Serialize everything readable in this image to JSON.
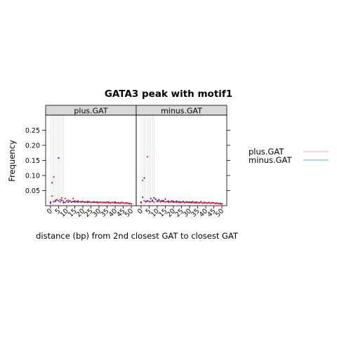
{
  "chart_data": {
    "type": "scatter",
    "title": "GATA3 peak with motif1",
    "xlabel": "distance (bp) from 2nd closest GAT to closest GAT",
    "ylabel": "Frequency",
    "xlim": [
      -3,
      53
    ],
    "ylim": [
      0,
      0.3
    ],
    "xticks": [
      0,
      5,
      10,
      15,
      20,
      25,
      30,
      35,
      40,
      45,
      50
    ],
    "yticks": [
      0.05,
      0.1,
      0.15,
      0.2,
      0.25
    ],
    "ytick_labels": [
      "0.05",
      "0.10",
      "0.15",
      "0.20",
      "0.25"
    ],
    "grid": "vertical lines at x = 0..8",
    "legend_placement": "right",
    "legend": [
      {
        "name": "plus.GAT",
        "color": "#ffc0cb"
      },
      {
        "name": "minus.GAT",
        "color": "#87ceeb"
      }
    ],
    "panels": [
      {
        "name": "plus.GAT",
        "series": [
          {
            "color": "#0000ff",
            "x": [
              0,
              1,
              2,
              3,
              4,
              5,
              6,
              7,
              8,
              9,
              10,
              11,
              12,
              13,
              14,
              15,
              16,
              17,
              18,
              19,
              20,
              21,
              22,
              23,
              24,
              25,
              26,
              27,
              28,
              29,
              30,
              31,
              32,
              33,
              34,
              35,
              36,
              37,
              38,
              39,
              40,
              41,
              42,
              43,
              44,
              45,
              46,
              47,
              48,
              49,
              50
            ],
            "y": [
              0.012,
              0.076,
              0.013,
              0.015,
              0.019,
              0.158,
              0.013,
              0.018,
              0.01,
              0.011,
              0.015,
              0.012,
              0.016,
              0.012,
              0.014,
              0.012,
              0.013,
              0.012,
              0.013,
              0.012,
              0.014,
              0.011,
              0.012,
              0.011,
              0.013,
              0.011,
              0.012,
              0.011,
              0.012,
              0.01,
              0.011,
              0.012,
              0.01,
              0.011,
              0.01,
              0.012,
              0.01,
              0.009,
              0.011,
              0.01,
              0.012,
              0.009,
              0.01,
              0.009,
              0.011,
              0.009,
              0.008,
              0.01,
              0.008,
              0.007,
              0.006
            ]
          },
          {
            "color": "#ff0000",
            "x": [
              0,
              1,
              2,
              3,
              4,
              5,
              6,
              7,
              8,
              9,
              10,
              11,
              12,
              13,
              14,
              15,
              16,
              17,
              18,
              19,
              20,
              21,
              22,
              23,
              24,
              25,
              26,
              27,
              28,
              29,
              30,
              31,
              32,
              33,
              34,
              35,
              36,
              37,
              38,
              39,
              40,
              41,
              42,
              43,
              44,
              45,
              46,
              47,
              48,
              49,
              50
            ],
            "y": [
              0.008,
              0.032,
              0.095,
              0.018,
              0.02,
              0.016,
              0.02,
              0.026,
              0.015,
              0.024,
              0.016,
              0.018,
              0.014,
              0.013,
              0.024,
              0.016,
              0.014,
              0.016,
              0.013,
              0.014,
              0.013,
              0.012,
              0.013,
              0.014,
              0.012,
              0.011,
              0.012,
              0.013,
              0.011,
              0.012,
              0.01,
              0.012,
              0.011,
              0.01,
              0.011,
              0.01,
              0.012,
              0.009,
              0.01,
              0.011,
              0.009,
              0.01,
              0.009,
              0.008,
              0.01,
              0.009,
              0.008,
              0.009,
              0.007,
              0.008,
              0.006
            ]
          }
        ]
      },
      {
        "name": "minus.GAT",
        "series": [
          {
            "color": "#0000ff",
            "x": [
              0,
              1,
              2,
              3,
              4,
              5,
              6,
              7,
              8,
              9,
              10,
              11,
              12,
              13,
              14,
              15,
              16,
              17,
              18,
              19,
              20,
              21,
              22,
              23,
              24,
              25,
              26,
              27,
              28,
              29,
              30,
              31,
              32,
              33,
              34,
              35,
              36,
              37,
              38,
              39,
              40,
              41,
              42,
              43,
              44,
              45,
              46,
              47,
              48,
              49,
              50
            ],
            "y": [
              0.012,
              0.028,
              0.092,
              0.014,
              0.016,
              0.013,
              0.024,
              0.018,
              0.026,
              0.022,
              0.016,
              0.02,
              0.015,
              0.017,
              0.016,
              0.022,
              0.014,
              0.015,
              0.013,
              0.016,
              0.014,
              0.013,
              0.015,
              0.012,
              0.013,
              0.012,
              0.014,
              0.011,
              0.013,
              0.012,
              0.011,
              0.012,
              0.013,
              0.01,
              0.012,
              0.011,
              0.01,
              0.013,
              0.009,
              0.011,
              0.01,
              0.009,
              0.011,
              0.008,
              0.01,
              0.009,
              0.008,
              0.009,
              0.007,
              0.008,
              0.006
            ]
          },
          {
            "color": "#ff0000",
            "x": [
              0,
              1,
              2,
              3,
              4,
              5,
              6,
              7,
              8,
              9,
              10,
              11,
              12,
              13,
              14,
              15,
              16,
              17,
              18,
              19,
              20,
              21,
              22,
              23,
              24,
              25,
              26,
              27,
              28,
              29,
              30,
              31,
              32,
              33,
              34,
              35,
              36,
              37,
              38,
              39,
              40,
              41,
              42,
              43,
              44,
              45,
              46,
              47,
              48,
              49,
              50
            ],
            "y": [
              0.01,
              0.084,
              0.016,
              0.012,
              0.162,
              0.014,
              0.013,
              0.015,
              0.012,
              0.02,
              0.013,
              0.016,
              0.012,
              0.014,
              0.013,
              0.012,
              0.014,
              0.011,
              0.012,
              0.013,
              0.011,
              0.012,
              0.011,
              0.013,
              0.01,
              0.011,
              0.012,
              0.01,
              0.011,
              0.01,
              0.012,
              0.009,
              0.01,
              0.011,
              0.009,
              0.01,
              0.009,
              0.011,
              0.008,
              0.009,
              0.01,
              0.008,
              0.009,
              0.008,
              0.009,
              0.01,
              0.007,
              0.008,
              0.007,
              0.006,
              0.005
            ]
          }
        ]
      }
    ]
  }
}
